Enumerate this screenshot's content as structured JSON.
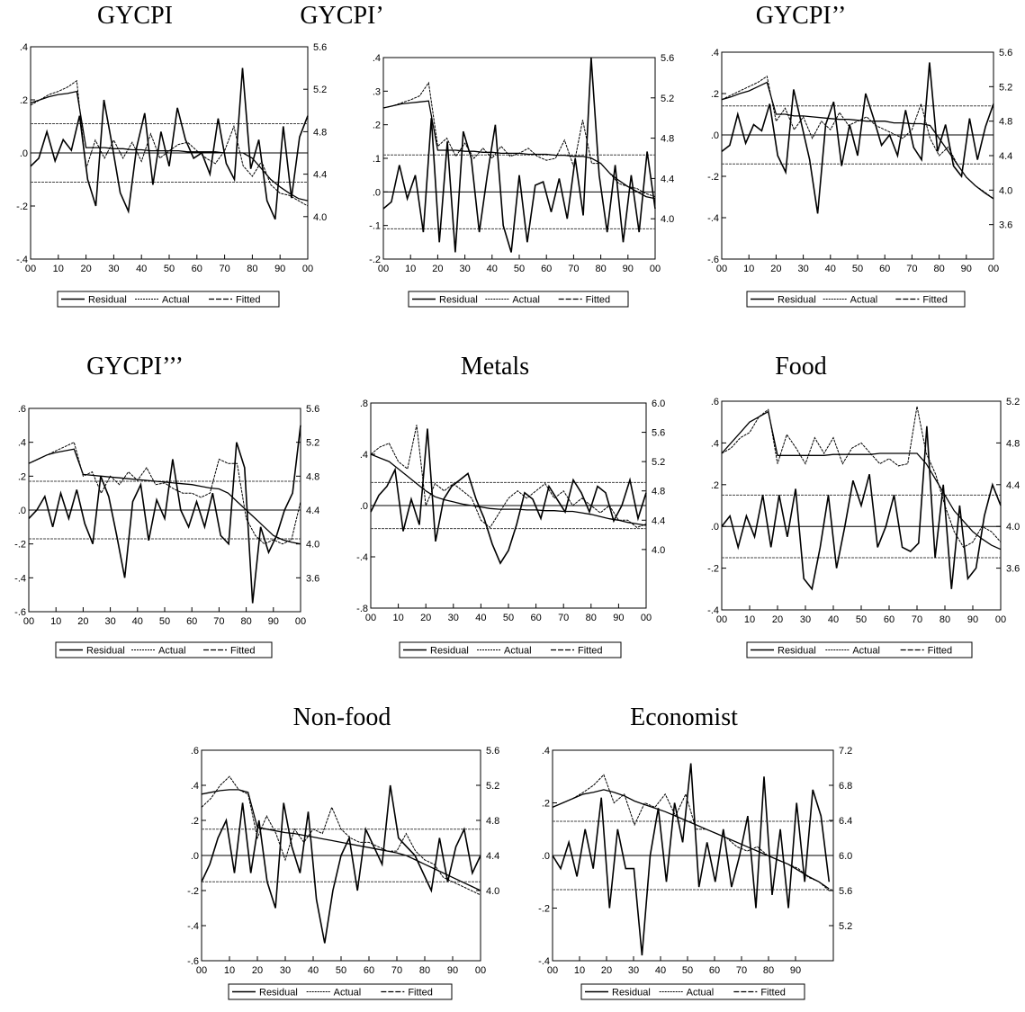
{
  "chart_data": [
    {
      "type": "line",
      "title": "GYCPI",
      "x_ticks": [
        "00",
        "10",
        "20",
        "30",
        "40",
        "50",
        "60",
        "70",
        "80",
        "90",
        "00"
      ],
      "left_ticks": [
        ".4",
        ".2",
        ".0",
        "-.2",
        "-.4"
      ],
      "left_range": [
        -0.4,
        0.4
      ],
      "right_ticks": [
        "5.6",
        "5.2",
        "4.8",
        "4.4",
        "4.0"
      ],
      "right_range": [
        3.6,
        5.6
      ],
      "band": 0.11,
      "legend": [
        "Residual",
        "Actual",
        "Fitted"
      ],
      "residual": [
        -0.05,
        -0.02,
        0.08,
        -0.03,
        0.05,
        0.01,
        0.14,
        -0.1,
        -0.2,
        0.2,
        0.03,
        -0.15,
        -0.22,
        0.02,
        0.15,
        -0.12,
        0.08,
        -0.05,
        0.17,
        0.05,
        -0.02,
        0.0,
        -0.08,
        0.13,
        -0.04,
        -0.1,
        0.32,
        -0.06,
        0.05,
        -0.18,
        -0.25,
        0.1,
        -0.17,
        0.06,
        0.14
      ],
      "actual": [
        5.05,
        5.1,
        5.15,
        5.18,
        5.22,
        5.28,
        4.45,
        4.72,
        4.55,
        4.72,
        4.55,
        4.7,
        4.52,
        4.78,
        4.55,
        4.62,
        4.68,
        4.7,
        4.62,
        4.55,
        4.5,
        4.62,
        4.85,
        4.48,
        4.38,
        4.52,
        4.3,
        4.22,
        4.2,
        4.15,
        4.1
      ],
      "fitted": [
        5.07,
        5.1,
        5.13,
        5.15,
        5.16,
        5.18,
        4.65,
        4.65,
        4.65,
        4.64,
        4.64,
        4.63,
        4.63,
        4.62,
        4.62,
        4.62,
        4.62,
        4.61,
        4.61,
        4.61,
        4.61,
        4.6,
        4.6,
        4.6,
        4.55,
        4.45,
        4.35,
        4.28,
        4.22,
        4.17,
        4.15
      ]
    },
    {
      "type": "line",
      "title": "GYCPI’",
      "x_ticks": [
        "00",
        "10",
        "20",
        "30",
        "40",
        "50",
        "60",
        "70",
        "80",
        "90",
        "00"
      ],
      "left_ticks": [
        ".4",
        ".3",
        ".2",
        ".1",
        ".0",
        "-.1",
        "-.2"
      ],
      "left_range": [
        -0.2,
        0.4
      ],
      "right_ticks": [
        "5.6",
        "5.2",
        "4.8",
        "4.4",
        "4.0"
      ],
      "right_range": [
        3.6,
        5.6
      ],
      "band": 0.11,
      "legend": [
        "Residual",
        "Actual",
        "Fitted"
      ],
      "residual": [
        -0.05,
        -0.03,
        0.08,
        -0.02,
        0.05,
        -0.12,
        0.22,
        -0.15,
        0.15,
        -0.18,
        0.18,
        0.1,
        -0.12,
        0.05,
        0.2,
        -0.1,
        -0.18,
        0.05,
        -0.15,
        0.02,
        0.03,
        -0.06,
        0.04,
        -0.08,
        0.1,
        -0.07,
        0.4,
        0.05,
        -0.12,
        0.08,
        -0.15,
        0.05,
        -0.12,
        0.12,
        -0.05
      ],
      "actual": [
        5.1,
        5.12,
        5.15,
        5.18,
        5.22,
        5.35,
        4.72,
        4.8,
        4.62,
        4.75,
        4.6,
        4.7,
        4.6,
        4.72,
        4.62,
        4.65,
        4.7,
        4.62,
        4.58,
        4.6,
        4.78,
        4.52,
        4.98,
        4.55,
        4.55,
        4.45,
        4.35,
        4.32,
        4.3,
        4.25,
        4.22
      ],
      "fitted": [
        5.1,
        5.12,
        5.14,
        5.15,
        5.16,
        5.17,
        4.68,
        4.68,
        4.68,
        4.67,
        4.67,
        4.66,
        4.66,
        4.65,
        4.65,
        4.65,
        4.64,
        4.64,
        4.64,
        4.63,
        4.63,
        4.62,
        4.62,
        4.6,
        4.55,
        4.45,
        4.38,
        4.32,
        4.27,
        4.22,
        4.2
      ]
    },
    {
      "type": "line",
      "title": "GYCPI’’",
      "x_ticks": [
        "00",
        "10",
        "20",
        "30",
        "40",
        "50",
        "60",
        "70",
        "80",
        "90",
        "00"
      ],
      "left_ticks": [
        ".4",
        ".2",
        ".0",
        "-.2",
        "-.4",
        "-.6"
      ],
      "left_range": [
        -0.6,
        0.4
      ],
      "right_ticks": [
        "5.6",
        "5.2",
        "4.8",
        "4.4",
        "4.0",
        "3.6"
      ],
      "right_range": [
        3.2,
        5.6
      ],
      "band": 0.14,
      "legend": [
        "Residual",
        "Actual",
        "Fitted"
      ],
      "residual": [
        -0.08,
        -0.05,
        0.1,
        -0.04,
        0.05,
        0.02,
        0.15,
        -0.1,
        -0.18,
        0.22,
        0.05,
        -0.12,
        -0.38,
        0.05,
        0.16,
        -0.15,
        0.05,
        -0.1,
        0.2,
        0.08,
        -0.05,
        0.0,
        -0.1,
        0.12,
        -0.06,
        -0.12,
        0.35,
        -0.08,
        0.05,
        -0.15,
        -0.2,
        0.08,
        -0.12,
        0.04,
        0.15
      ],
      "actual": [
        5.05,
        5.1,
        5.15,
        5.2,
        5.25,
        5.32,
        4.8,
        4.95,
        4.7,
        4.85,
        4.6,
        4.8,
        4.7,
        4.9,
        4.75,
        4.8,
        4.85,
        4.75,
        4.7,
        4.65,
        4.6,
        4.7,
        5.0,
        4.6,
        4.4,
        4.5,
        4.3,
        4.15,
        4.05,
        3.98,
        3.9
      ],
      "fitted": [
        5.05,
        5.08,
        5.12,
        5.15,
        5.2,
        5.25,
        4.88,
        4.88,
        4.86,
        4.86,
        4.85,
        4.84,
        4.83,
        4.82,
        4.82,
        4.81,
        4.8,
        4.8,
        4.8,
        4.78,
        4.78,
        4.77,
        4.77,
        4.75,
        4.6,
        4.45,
        4.3,
        4.15,
        4.05,
        3.97,
        3.9
      ]
    },
    {
      "type": "line",
      "title": "GYCPI’’’",
      "x_ticks": [
        "00",
        "10",
        "20",
        "30",
        "40",
        "50",
        "60",
        "70",
        "80",
        "90",
        "00"
      ],
      "left_ticks": [
        ".6",
        ".4",
        ".2",
        ".0",
        "-.2",
        "-.4",
        "-.6"
      ],
      "left_range": [
        -0.6,
        0.6
      ],
      "right_ticks": [
        "5.6",
        "5.2",
        "4.8",
        "4.4",
        "4.0",
        "3.6"
      ],
      "right_range": [
        3.2,
        5.6
      ],
      "band": 0.17,
      "legend": [
        "Residual",
        "Actual",
        "Fitted"
      ],
      "residual": [
        -0.05,
        0.0,
        0.08,
        -0.1,
        0.1,
        -0.05,
        0.12,
        -0.08,
        -0.2,
        0.2,
        0.08,
        -0.15,
        -0.4,
        0.05,
        0.15,
        -0.18,
        0.06,
        -0.05,
        0.3,
        0.0,
        -0.1,
        0.05,
        -0.1,
        0.1,
        -0.15,
        -0.2,
        0.4,
        0.25,
        -0.55,
        -0.1,
        -0.25,
        -0.15,
        0.0,
        0.1,
        0.5
      ],
      "actual": [
        4.95,
        5.0,
        5.05,
        5.1,
        5.15,
        5.2,
        4.8,
        4.85,
        4.6,
        4.8,
        4.7,
        4.85,
        4.75,
        4.9,
        4.7,
        4.72,
        4.65,
        4.6,
        4.6,
        4.55,
        4.6,
        5.0,
        4.95,
        4.95,
        4.3,
        4.1,
        4.0,
        4.05,
        4.0,
        4.05,
        4.5
      ],
      "fitted": [
        4.95,
        5.0,
        5.05,
        5.08,
        5.1,
        5.12,
        4.82,
        4.81,
        4.8,
        4.79,
        4.78,
        4.77,
        4.76,
        4.75,
        4.74,
        4.73,
        4.72,
        4.71,
        4.7,
        4.68,
        4.66,
        4.65,
        4.6,
        4.5,
        4.4,
        4.3,
        4.2,
        4.1,
        4.05,
        4.02,
        4.0
      ]
    },
    {
      "type": "line",
      "title": "Metals",
      "x_ticks": [
        "00",
        "10",
        "20",
        "30",
        "40",
        "50",
        "60",
        "70",
        "80",
        "90",
        "00"
      ],
      "left_ticks": [
        ".8",
        ".4",
        ".0",
        "-.4",
        "-.8"
      ],
      "left_range": [
        -0.8,
        0.8
      ],
      "right_ticks": [
        "6.0",
        "5.6",
        "5.2",
        "4.8",
        "4.4",
        "4.0"
      ],
      "right_range": [
        3.2,
        6.0
      ],
      "band": 0.18,
      "legend": [
        "Residual",
        "Actual",
        "Fitted"
      ],
      "residual": [
        -0.05,
        0.08,
        0.15,
        0.28,
        -0.2,
        0.05,
        -0.15,
        0.6,
        -0.28,
        0.05,
        0.15,
        0.2,
        0.25,
        0.05,
        -0.1,
        -0.3,
        -0.45,
        -0.35,
        -0.15,
        0.1,
        0.05,
        -0.1,
        0.15,
        0.05,
        -0.05,
        0.2,
        0.1,
        -0.05,
        0.15,
        0.1,
        -0.12,
        0.0,
        0.2,
        -0.1,
        0.1
      ],
      "actual": [
        5.3,
        5.4,
        5.45,
        5.2,
        5.1,
        5.7,
        4.6,
        4.9,
        4.8,
        4.9,
        4.8,
        4.7,
        4.4,
        4.3,
        4.5,
        4.7,
        4.8,
        4.7,
        4.8,
        4.9,
        4.7,
        4.8,
        4.6,
        4.7,
        4.6,
        4.5,
        4.6,
        4.4,
        4.4,
        4.3,
        4.35
      ],
      "fitted": [
        5.3,
        5.25,
        5.2,
        5.1,
        5.0,
        4.9,
        4.8,
        4.72,
        4.68,
        4.65,
        4.62,
        4.6,
        4.58,
        4.56,
        4.55,
        4.55,
        4.55,
        4.54,
        4.54,
        4.53,
        4.53,
        4.52,
        4.52,
        4.5,
        4.48,
        4.45,
        4.42,
        4.4,
        4.37,
        4.35,
        4.33
      ]
    },
    {
      "type": "line",
      "title": "Food",
      "x_ticks": [
        "00",
        "10",
        "20",
        "30",
        "40",
        "50",
        "60",
        "70",
        "80",
        "90",
        "00"
      ],
      "left_ticks": [
        ".6",
        ".4",
        ".2",
        ".0",
        "-.2",
        "-.4"
      ],
      "left_range": [
        -0.4,
        0.6
      ],
      "right_ticks": [
        "5.2",
        "4.8",
        "4.4",
        "4.0",
        "3.6"
      ],
      "right_range": [
        3.2,
        5.2
      ],
      "band": 0.15,
      "legend": [
        "Residual",
        "Actual",
        "Fitted"
      ],
      "residual": [
        0.0,
        0.05,
        -0.1,
        0.05,
        -0.05,
        0.15,
        -0.1,
        0.15,
        -0.05,
        0.18,
        -0.25,
        -0.3,
        -0.1,
        0.15,
        -0.2,
        0.0,
        0.22,
        0.1,
        0.25,
        -0.1,
        0.0,
        0.15,
        -0.1,
        -0.12,
        -0.08,
        0.48,
        -0.15,
        0.2,
        -0.3,
        0.1,
        -0.25,
        -0.2,
        0.05,
        0.2,
        0.1
      ],
      "actual": [
        4.7,
        4.75,
        4.85,
        4.9,
        5.05,
        5.12,
        4.6,
        4.88,
        4.75,
        4.6,
        4.85,
        4.7,
        4.85,
        4.6,
        4.75,
        4.8,
        4.7,
        4.6,
        4.65,
        4.58,
        4.6,
        5.15,
        4.7,
        4.5,
        4.2,
        3.95,
        3.8,
        3.85,
        4.0,
        3.95,
        3.85
      ],
      "fitted": [
        4.7,
        4.8,
        4.9,
        5.0,
        5.05,
        5.1,
        4.68,
        4.68,
        4.68,
        4.68,
        4.68,
        4.68,
        4.69,
        4.69,
        4.69,
        4.69,
        4.69,
        4.7,
        4.7,
        4.7,
        4.7,
        4.7,
        4.6,
        4.45,
        4.3,
        4.15,
        4.05,
        3.95,
        3.88,
        3.82,
        3.78
      ]
    },
    {
      "type": "line",
      "title": "Non-food",
      "x_ticks": [
        "00",
        "10",
        "20",
        "30",
        "40",
        "50",
        "60",
        "70",
        "80",
        "90",
        "00"
      ],
      "left_ticks": [
        ".6",
        ".4",
        ".2",
        ".0",
        "-.2",
        "-.4",
        "-.6"
      ],
      "left_range": [
        -0.6,
        0.6
      ],
      "right_ticks": [
        "5.6",
        "5.2",
        "4.8",
        "4.4",
        "4.0"
      ],
      "right_range": [
        3.2,
        5.6
      ],
      "band": 0.15,
      "legend": [
        "Residual",
        "Actual",
        "Fitted"
      ],
      "residual": [
        -0.15,
        -0.05,
        0.1,
        0.2,
        -0.1,
        0.3,
        -0.1,
        0.2,
        -0.15,
        -0.3,
        0.3,
        0.05,
        -0.1,
        0.25,
        -0.25,
        -0.5,
        -0.2,
        0.0,
        0.1,
        -0.2,
        0.15,
        0.05,
        -0.05,
        0.4,
        0.1,
        0.05,
        0.0,
        -0.1,
        -0.2,
        0.1,
        -0.15,
        0.05,
        0.15,
        -0.1,
        0.0
      ],
      "actual": [
        4.95,
        5.05,
        5.2,
        5.3,
        5.15,
        5.1,
        4.6,
        4.85,
        4.65,
        4.35,
        4.7,
        4.55,
        4.7,
        4.65,
        4.95,
        4.7,
        4.6,
        4.55,
        4.55,
        4.5,
        4.45,
        4.45,
        4.65,
        4.45,
        4.35,
        4.3,
        4.15,
        4.1,
        4.05,
        4.0,
        3.95
      ],
      "fitted": [
        5.1,
        5.12,
        5.14,
        5.15,
        5.15,
        5.12,
        4.72,
        4.7,
        4.68,
        4.66,
        4.65,
        4.63,
        4.61,
        4.59,
        4.57,
        4.55,
        4.53,
        4.51,
        4.49,
        4.47,
        4.45,
        4.43,
        4.4,
        4.35,
        4.3,
        4.25,
        4.2,
        4.15,
        4.1,
        4.05,
        4.0
      ]
    },
    {
      "type": "line",
      "title": "Economist",
      "x_ticks": [
        "00",
        "10",
        "20",
        "30",
        "40",
        "50",
        "60",
        "70",
        "80",
        "90"
      ],
      "left_ticks": [
        ".4",
        ".2",
        ".0",
        "-.2",
        "-.4"
      ],
      "left_range": [
        -0.4,
        0.4
      ],
      "right_ticks": [
        "7.2",
        "6.8",
        "6.4",
        "6.0",
        "5.6",
        "5.2"
      ],
      "right_range": [
        4.8,
        7.2
      ],
      "band": 0.13,
      "legend": [
        "Residual",
        "Actual",
        "Fitted"
      ],
      "residual": [
        0.0,
        -0.05,
        0.05,
        -0.08,
        0.1,
        -0.05,
        0.22,
        -0.2,
        0.1,
        -0.05,
        -0.05,
        -0.38,
        0.0,
        0.18,
        -0.1,
        0.2,
        0.05,
        0.35,
        -0.12,
        0.05,
        -0.1,
        0.1,
        -0.12,
        0.0,
        0.15,
        -0.2,
        0.3,
        -0.15,
        0.1,
        -0.2,
        0.2,
        -0.1,
        0.25,
        0.15,
        -0.1
      ],
      "actual": [
        6.55,
        6.6,
        6.65,
        6.72,
        6.8,
        6.92,
        6.6,
        6.7,
        6.35,
        6.6,
        6.55,
        6.7,
        6.45,
        6.7,
        6.3,
        6.3,
        6.25,
        6.2,
        6.1,
        6.05,
        6.1,
        6.0,
        5.95,
        5.9,
        5.85,
        5.75,
        5.7,
        5.6
      ],
      "fitted": [
        6.55,
        6.6,
        6.65,
        6.7,
        6.72,
        6.75,
        6.72,
        6.68,
        6.62,
        6.58,
        6.54,
        6.5,
        6.45,
        6.4,
        6.35,
        6.3,
        6.25,
        6.2,
        6.15,
        6.1,
        6.05,
        6.0,
        5.95,
        5.9,
        5.83,
        5.76,
        5.7,
        5.62
      ]
    }
  ]
}
